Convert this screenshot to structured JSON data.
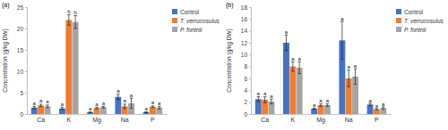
{
  "chart_data": [
    {
      "type": "bar",
      "title": "(a)",
      "y_label": "Concentration (g/kg DW)",
      "categories": [
        "Ca",
        "K",
        "Mg",
        "Na",
        "P"
      ],
      "series": [
        {
          "name": "Control",
          "color": "#4472c4",
          "values": [
            1.5,
            1.3,
            0.4,
            4.0,
            0.4
          ],
          "errors": [
            0.3,
            0.3,
            0.1,
            0.6,
            0.1
          ],
          "letters": [
            "a",
            "a",
            "a",
            "a",
            "a"
          ]
        },
        {
          "name": "T. verrucosulus",
          "color": "#ed7d31",
          "values": [
            2.0,
            22.0,
            1.4,
            1.8,
            1.7
          ],
          "errors": [
            0.3,
            1.2,
            0.2,
            0.5,
            0.2
          ],
          "letters": [
            "a",
            "b",
            "a",
            "a",
            "a"
          ]
        },
        {
          "name": "P. fortinii",
          "color": "#a5a5a5",
          "values": [
            1.8,
            21.5,
            1.6,
            2.5,
            1.5
          ],
          "errors": [
            0.3,
            1.5,
            0.2,
            1.2,
            0.3
          ],
          "letters": [
            "a",
            "b",
            "a",
            "a",
            "a"
          ]
        }
      ],
      "ylim": [
        0,
        25
      ],
      "yticks": [
        0,
        5,
        10,
        15,
        20,
        25
      ],
      "legend": "upper right"
    },
    {
      "type": "bar",
      "title": "(b)",
      "y_label": "Concentration (g/kg DW)",
      "categories": [
        "Ca",
        "K",
        "Mg",
        "Na",
        "P"
      ],
      "series": [
        {
          "name": "Control",
          "color": "#4472c4",
          "values": [
            2.5,
            12.0,
            0.9,
            12.4,
            1.6
          ],
          "errors": [
            0.4,
            1.3,
            0.1,
            3.2,
            0.2
          ],
          "letters": [
            "a",
            "a",
            "a",
            "a",
            "a"
          ]
        },
        {
          "name": "T. verrucosulus",
          "color": "#ed7d31",
          "values": [
            2.4,
            8.0,
            1.5,
            6.0,
            0.8
          ],
          "errors": [
            0.5,
            0.8,
            0.2,
            1.4,
            0.1
          ],
          "letters": [
            "a",
            "a",
            "a",
            "a",
            "a"
          ]
        },
        {
          "name": "P. fortinii",
          "color": "#a5a5a5",
          "values": [
            2.1,
            7.8,
            1.5,
            6.3,
            1.0
          ],
          "errors": [
            0.4,
            1.0,
            0.2,
            1.3,
            0.2
          ],
          "letters": [
            "a",
            "a",
            "a",
            "a",
            "a"
          ]
        }
      ],
      "ylim": [
        0,
        18
      ],
      "yticks": [
        0,
        2,
        4,
        6,
        8,
        10,
        12,
        14,
        16,
        18
      ],
      "legend": "upper right"
    }
  ]
}
